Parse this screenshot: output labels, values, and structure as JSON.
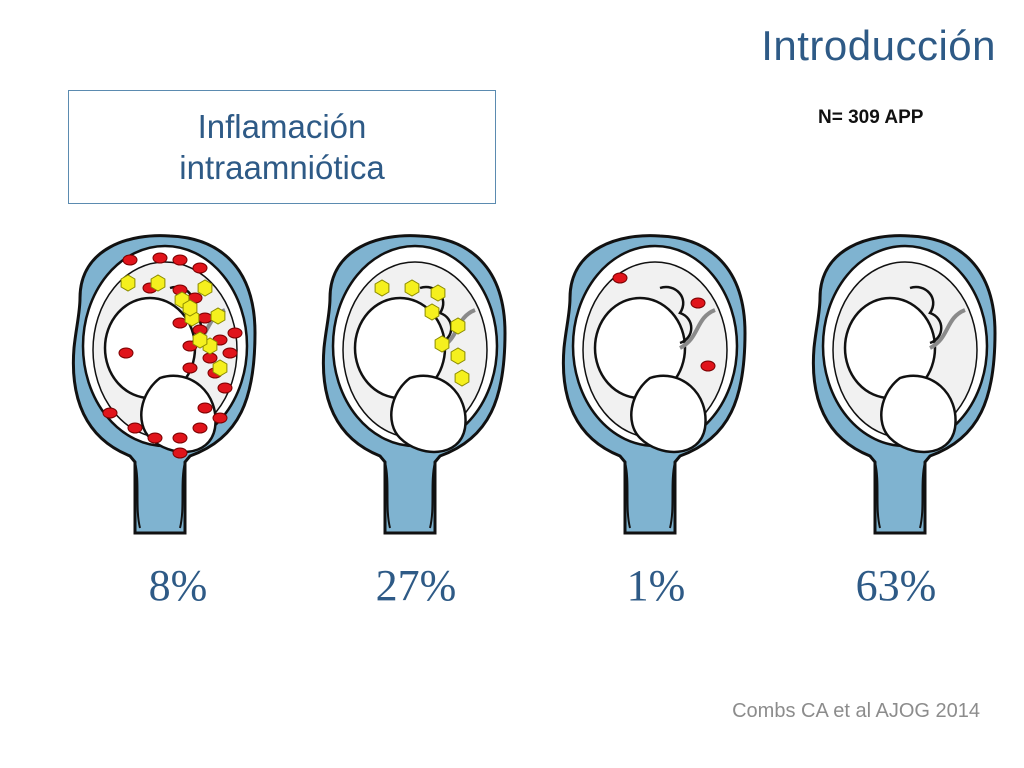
{
  "slide": {
    "title": "Introducción",
    "box_label_line1": "Inflamación",
    "box_label_line2": "intraamniótica",
    "sample_size": "N= 309 APP",
    "citation": "Combs CA et al AJOG 2014"
  },
  "panels": [
    {
      "percent": "8%",
      "red_cells": true,
      "yellow_cells": true,
      "density": "high"
    },
    {
      "percent": "27%",
      "red_cells": false,
      "yellow_cells": true,
      "density": "medium"
    },
    {
      "percent": "1%",
      "red_cells": true,
      "yellow_cells": false,
      "density": "low"
    },
    {
      "percent": "63%",
      "red_cells": false,
      "yellow_cells": false,
      "density": "none"
    }
  ],
  "colors": {
    "title": "#2e5a86",
    "uterus": "#7fb3d0",
    "red_cell": "#e0141b",
    "yellow_cell": "#f5f01e",
    "citation": "#8c8c8c"
  },
  "icons": [
    "uterus-fetus-illustration",
    "red-blood-cell-icon",
    "yellow-hexagon-icon"
  ]
}
